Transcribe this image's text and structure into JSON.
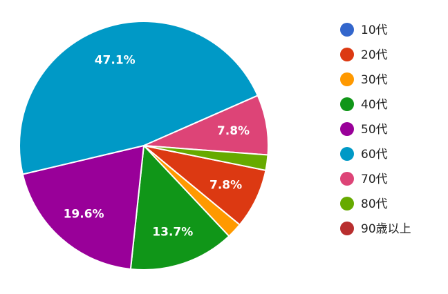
{
  "chart_data": {
    "type": "pie",
    "start_angle_deg": 101.5,
    "categories": [
      "10代",
      "20代",
      "30代",
      "40代",
      "50代",
      "60代",
      "70代",
      "80代",
      "90歳以上"
    ],
    "values": [
      0,
      7.8,
      2.0,
      13.7,
      19.6,
      47.1,
      7.8,
      2.0,
      0
    ],
    "slice_labels": [
      "",
      "7.8%",
      "",
      "13.7%",
      "19.6%",
      "47.1%",
      "7.8%",
      "",
      ""
    ],
    "colors": [
      "#3366cc",
      "#dc3912",
      "#ff9900",
      "#109618",
      "#990099",
      "#0099c6",
      "#dd4477",
      "#66aa00",
      "#b82e2e"
    ],
    "legend_position": "right"
  }
}
